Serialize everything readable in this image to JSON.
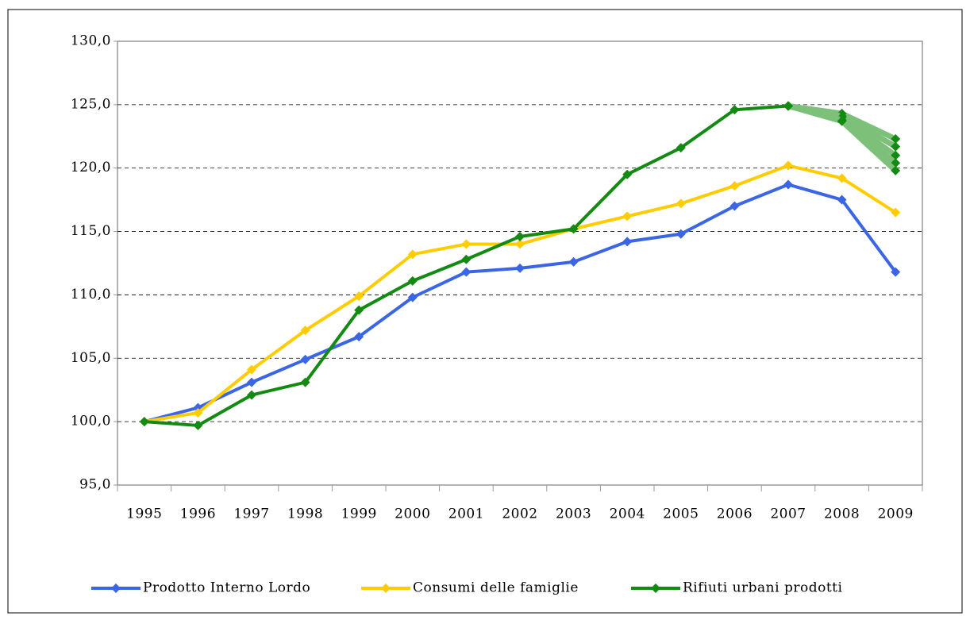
{
  "chart_data": {
    "type": "line",
    "categories": [
      "1995",
      "1996",
      "1997",
      "1998",
      "1999",
      "2000",
      "2001",
      "2002",
      "2003",
      "2004",
      "2005",
      "2006",
      "2007",
      "2008",
      "2009"
    ],
    "series": [
      {
        "name": "Prodotto Interno Lordo",
        "color": "#3a66e6",
        "values": [
          100.0,
          101.1,
          103.1,
          104.9,
          106.7,
          109.8,
          111.8,
          112.1,
          112.6,
          114.2,
          114.8,
          117.0,
          118.7,
          117.5,
          111.8
        ]
      },
      {
        "name": "Consumi delle famiglie",
        "color": "#ffcc00",
        "values": [
          100.0,
          100.7,
          104.1,
          107.2,
          109.9,
          113.2,
          114.0,
          114.0,
          115.2,
          116.2,
          117.2,
          118.6,
          120.2,
          119.2,
          116.5
        ]
      },
      {
        "name": "Rifiuti urbani prodotti",
        "color": "#138a12",
        "values": [
          100.0,
          99.7,
          102.1,
          103.1,
          108.8,
          111.1,
          112.8,
          114.6,
          115.2,
          119.5,
          121.6,
          124.6,
          124.9,
          null,
          null
        ]
      }
    ],
    "scenarios": [
      {
        "color": "#7dc07a",
        "values": [
          null,
          null,
          null,
          null,
          null,
          null,
          null,
          null,
          null,
          null,
          null,
          null,
          124.9,
          124.3,
          122.3
        ]
      },
      {
        "color": "#7dc07a",
        "values": [
          null,
          null,
          null,
          null,
          null,
          null,
          null,
          null,
          null,
          null,
          null,
          null,
          124.9,
          124.1,
          121.7
        ]
      },
      {
        "color": "#7dc07a",
        "values": [
          null,
          null,
          null,
          null,
          null,
          null,
          null,
          null,
          null,
          null,
          null,
          null,
          124.9,
          124.0,
          121.0
        ]
      },
      {
        "color": "#7dc07a",
        "values": [
          null,
          null,
          null,
          null,
          null,
          null,
          null,
          null,
          null,
          null,
          null,
          null,
          124.9,
          123.8,
          120.4
        ]
      },
      {
        "color": "#7dc07a",
        "values": [
          null,
          null,
          null,
          null,
          null,
          null,
          null,
          null,
          null,
          null,
          null,
          null,
          124.9,
          123.7,
          119.8
        ]
      }
    ],
    "ylim": [
      95,
      130
    ],
    "yticks": [
      {
        "value": 95,
        "label": "95,0"
      },
      {
        "value": 100,
        "label": "100,0"
      },
      {
        "value": 105,
        "label": "105,0"
      },
      {
        "value": 110,
        "label": "110,0"
      },
      {
        "value": 115,
        "label": "115,0"
      },
      {
        "value": 120,
        "label": "120,0"
      },
      {
        "value": 125,
        "label": "125,0"
      },
      {
        "value": 130,
        "label": "130,0"
      }
    ],
    "grid": true,
    "legend": "bottom"
  }
}
